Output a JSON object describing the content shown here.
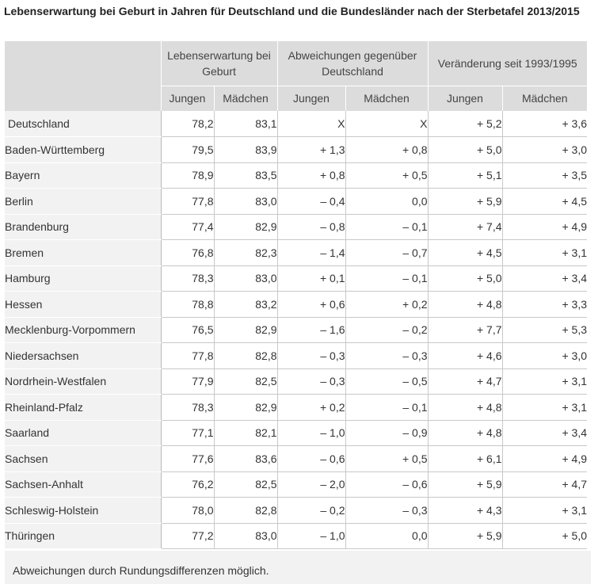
{
  "title": "Lebenserwartung bei Geburt in Jahren für Deutschland und die Bundesländer nach der Sterbetafel 2013/2015",
  "header": {
    "groups": [
      "Lebenserwartung bei Geburt",
      "Abweichungen gegenüber Deutschland",
      "Veränderung seit 1993/1995"
    ],
    "sub": [
      "Jungen",
      "Mädchen",
      "Jungen",
      "Mädchen",
      "Jungen",
      "Mädchen"
    ]
  },
  "rows": [
    {
      "label": "Deutschland",
      "values": [
        "78,2",
        "83,1",
        "X",
        "X",
        "+ 5,2",
        "+ 3,6"
      ]
    },
    {
      "label": "Baden-Württemberg",
      "values": [
        "79,5",
        "83,9",
        "+ 1,3",
        "+ 0,8",
        "+ 5,0",
        "+ 3,0"
      ]
    },
    {
      "label": "Bayern",
      "values": [
        "78,9",
        "83,5",
        "+ 0,8",
        "+ 0,5",
        "+ 5,1",
        "+ 3,5"
      ]
    },
    {
      "label": "Berlin",
      "values": [
        "77,8",
        "83,0",
        "– 0,4",
        "0,0",
        "+ 5,9",
        "+ 4,5"
      ]
    },
    {
      "label": "Brandenburg",
      "values": [
        "77,4",
        "82,9",
        "– 0,8",
        "– 0,1",
        "+ 7,4",
        "+ 4,9"
      ]
    },
    {
      "label": "Bremen",
      "values": [
        "76,8",
        "82,3",
        "– 1,4",
        "– 0,7",
        "+ 4,5",
        "+ 3,1"
      ]
    },
    {
      "label": "Hamburg",
      "values": [
        "78,3",
        "83,0",
        "+ 0,1",
        "– 0,1",
        "+ 5,0",
        "+ 3,4"
      ]
    },
    {
      "label": "Hessen",
      "values": [
        "78,8",
        "83,2",
        "+ 0,6",
        "+ 0,2",
        "+ 4,8",
        "+ 3,3"
      ]
    },
    {
      "label": "Mecklenburg-Vorpommern",
      "values": [
        "76,5",
        "82,9",
        "– 1,6",
        "– 0,2",
        "+ 7,7",
        "+ 5,3"
      ]
    },
    {
      "label": "Niedersachsen",
      "values": [
        "77,8",
        "82,8",
        "– 0,3",
        "– 0,3",
        "+ 4,6",
        "+ 3,0"
      ]
    },
    {
      "label": "Nordrhein-Westfalen",
      "values": [
        "77,9",
        "82,5",
        "– 0,3",
        "– 0,5",
        "+ 4,7",
        "+ 3,1"
      ]
    },
    {
      "label": "Rheinland-Pfalz",
      "values": [
        "78,3",
        "82,9",
        "+ 0,2",
        "– 0,1",
        "+ 4,8",
        "+ 3,1"
      ]
    },
    {
      "label": "Saarland",
      "values": [
        "77,1",
        "82,1",
        "– 1,0",
        "– 0,9",
        "+ 4,8",
        "+ 3,4"
      ]
    },
    {
      "label": "Sachsen",
      "values": [
        "77,6",
        "83,6",
        "– 0,6",
        "+ 0,5",
        "+ 6,1",
        "+ 4,9"
      ]
    },
    {
      "label": "Sachsen-Anhalt",
      "values": [
        "76,2",
        "82,5",
        "– 2,0",
        "– 0,6",
        "+ 5,9",
        "+ 4,7"
      ]
    },
    {
      "label": "Schleswig-Holstein",
      "values": [
        "78,0",
        "82,8",
        "– 0,2",
        "– 0,3",
        "+ 4,3",
        "+ 3,1"
      ]
    },
    {
      "label": "Thüringen",
      "values": [
        "77,2",
        "83,0",
        "– 1,0",
        "0,0",
        "+ 5,9",
        "+ 5,0"
      ]
    }
  ],
  "footnote": "Abweichungen durch Rundungsdifferenzen möglich."
}
